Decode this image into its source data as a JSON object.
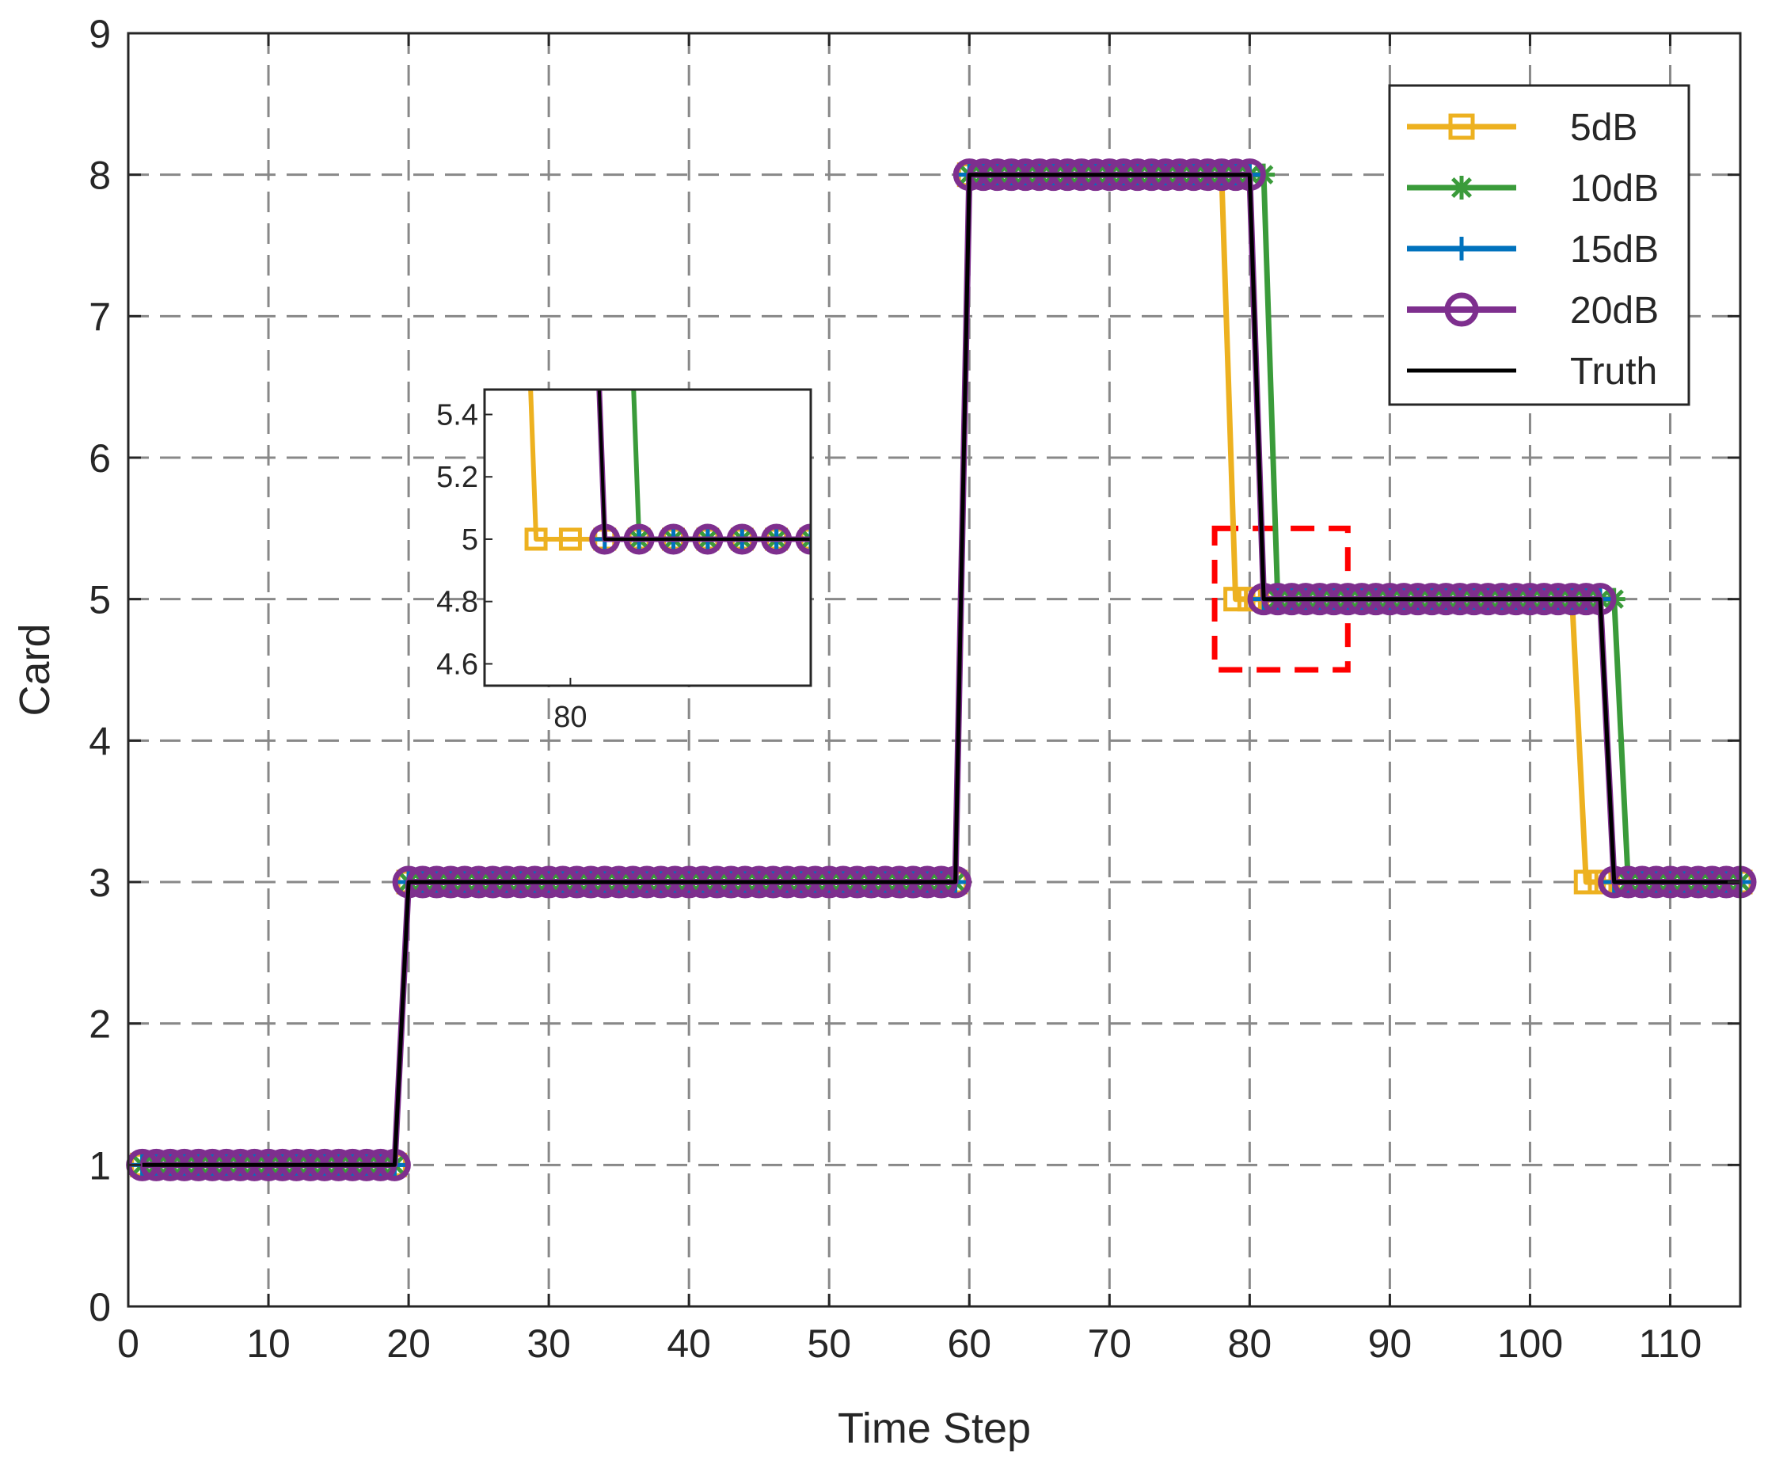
{
  "chart_data": [
    {
      "id": "main",
      "type": "line",
      "title": "",
      "xlabel": "Time Step",
      "ylabel": "Card",
      "xlim": [
        0,
        115
      ],
      "ylim": [
        0,
        9
      ],
      "xticks": [
        0,
        10,
        20,
        30,
        40,
        50,
        60,
        70,
        80,
        90,
        100,
        110
      ],
      "yticks": [
        0,
        1,
        2,
        3,
        4,
        5,
        6,
        7,
        8,
        9
      ],
      "grid": true,
      "grid_style": "dashed",
      "legend_position": "top-right",
      "series": [
        {
          "name": "5dB",
          "color": "#EDB120",
          "marker": "square",
          "segments": [
            {
              "from": 1,
              "to": 19,
              "value": 1
            },
            {
              "from": 20,
              "to": 59,
              "value": 3
            },
            {
              "from": 60,
              "to": 78,
              "value": 8
            },
            {
              "from": 79,
              "to": 103,
              "value": 5
            },
            {
              "from": 104,
              "to": 115,
              "value": 3
            }
          ]
        },
        {
          "name": "10dB",
          "color": "#3A9B3A",
          "marker": "star",
          "segments": [
            {
              "from": 1,
              "to": 19,
              "value": 1
            },
            {
              "from": 20,
              "to": 59,
              "value": 3
            },
            {
              "from": 60,
              "to": 81,
              "value": 8
            },
            {
              "from": 82,
              "to": 106,
              "value": 5
            },
            {
              "from": 107,
              "to": 115,
              "value": 3
            }
          ]
        },
        {
          "name": "15dB",
          "color": "#0072BD",
          "marker": "plus",
          "segments": [
            {
              "from": 1,
              "to": 19,
              "value": 1
            },
            {
              "from": 20,
              "to": 59,
              "value": 3
            },
            {
              "from": 60,
              "to": 80,
              "value": 8
            },
            {
              "from": 81,
              "to": 105,
              "value": 5
            },
            {
              "from": 106,
              "to": 115,
              "value": 3
            }
          ]
        },
        {
          "name": "20dB",
          "color": "#7E2F8E",
          "marker": "circle",
          "segments": [
            {
              "from": 1,
              "to": 19,
              "value": 1
            },
            {
              "from": 20,
              "to": 59,
              "value": 3
            },
            {
              "from": 60,
              "to": 80,
              "value": 8
            },
            {
              "from": 81,
              "to": 105,
              "value": 5
            },
            {
              "from": 106,
              "to": 115,
              "value": 3
            }
          ]
        },
        {
          "name": "Truth",
          "color": "#000000",
          "marker": "none",
          "segments": [
            {
              "from": 1,
              "to": 19,
              "value": 1
            },
            {
              "from": 20,
              "to": 59,
              "value": 3
            },
            {
              "from": 60,
              "to": 80,
              "value": 8
            },
            {
              "from": 81,
              "to": 105,
              "value": 5
            },
            {
              "from": 106,
              "to": 115,
              "value": 3
            }
          ]
        }
      ],
      "highlight_box": {
        "x": [
          77.5,
          87
        ],
        "y": [
          4.5,
          5.5
        ],
        "color": "#FF0000"
      }
    },
    {
      "id": "inset",
      "type": "line",
      "xlim": [
        77.5,
        87
      ],
      "ylim": [
        4.53,
        5.48
      ],
      "xticks": [
        80
      ],
      "yticks": [
        4.6,
        4.8,
        5,
        5.2,
        5.4
      ],
      "ytick_labels": [
        "4.6",
        "4.8",
        "5",
        "5.2",
        "5.4"
      ],
      "grid": false
    }
  ]
}
